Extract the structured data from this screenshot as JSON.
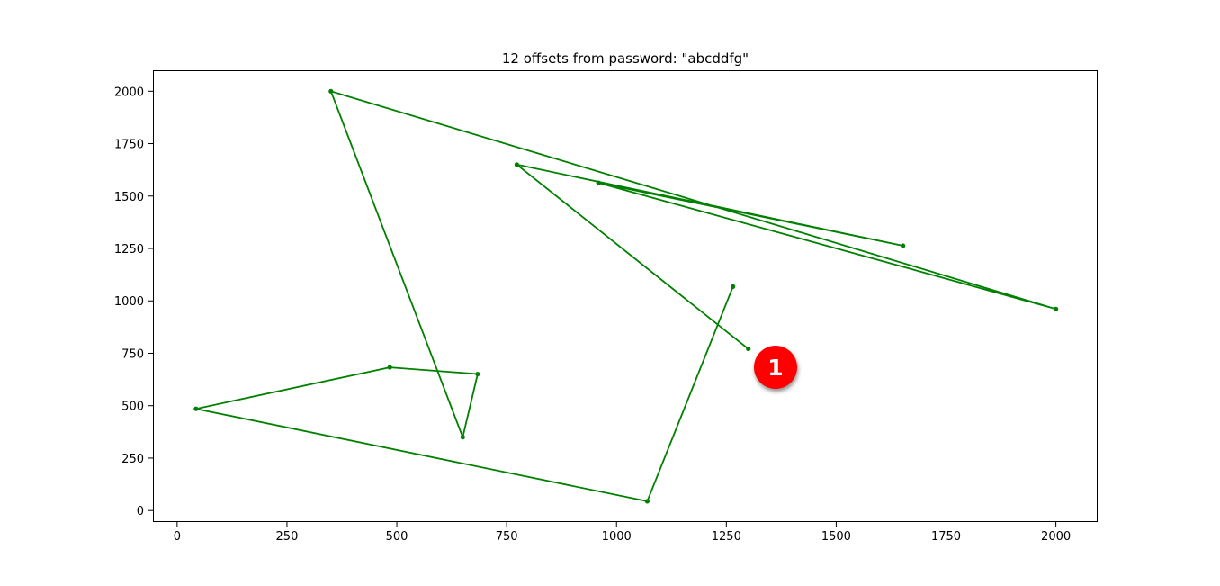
{
  "chart_data": {
    "type": "line",
    "title": "12 offsets from password: \"abcddfg\"",
    "xlabel": "",
    "ylabel": "",
    "xlim": [
      -55,
      2095
    ],
    "ylim": [
      -55,
      2100
    ],
    "xticks": [
      0,
      250,
      500,
      750,
      1000,
      1250,
      1500,
      1750,
      2000
    ],
    "yticks": [
      0,
      250,
      500,
      750,
      1000,
      1250,
      1500,
      1750,
      2000
    ],
    "grid": false,
    "series": [
      {
        "color": "#008000",
        "marker": "circle",
        "x": [
          1300,
          773,
          1652,
          959,
          2000,
          350,
          650,
          684,
          484,
          43,
          1070,
          1265
        ],
        "y": [
          771,
          1650,
          1263,
          1563,
          961,
          2000,
          350,
          651,
          683,
          485,
          44,
          1068
        ]
      }
    ]
  },
  "annotation": {
    "badge_label": "1",
    "badge_color": "#ff0000"
  }
}
